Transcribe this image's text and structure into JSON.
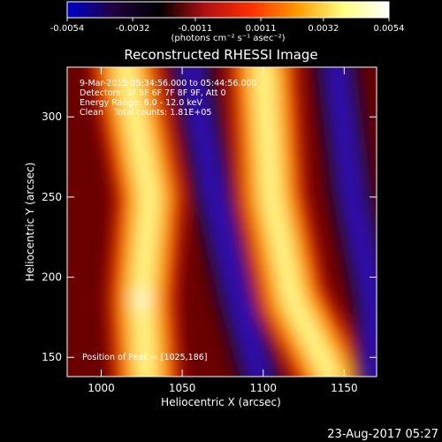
{
  "chart_data": {
    "type": "heatmap",
    "title": "Reconstructed RHESSI Image",
    "xlabel": "Heliocentric X (arcsec)",
    "ylabel": "Heliocentric Y (arcsec)",
    "xlim": [
      979,
      1170
    ],
    "ylim": [
      138,
      331
    ],
    "x_ticks": [
      1000,
      1050,
      1100,
      1150
    ],
    "y_ticks": [
      150,
      200,
      250,
      300
    ],
    "colorbar": {
      "min": -0.0054,
      "max": 0.0054,
      "ticks": [
        "-0.0054",
        "-0.0032",
        "-0.0011",
        "0.0011",
        "0.0032",
        "0.0054"
      ],
      "label": "(photons cm⁻² s⁻¹ asec⁻²)",
      "colormap": [
        "#0000d0",
        "#200040",
        "#000000",
        "#b01010",
        "#ff3000",
        "#ff9a00",
        "#ffff80",
        "#ffffff"
      ]
    },
    "annotations": [
      "9-Mar-2015 05:34:56.000 to 05:44:56.000",
      "Detectors: 3F 5F 6F 7F 8F 9F, Att 0",
      "Energy Range: 6.0 - 12.0 keV",
      "Clean    Total counts: 1.81E+05",
      "Position of Peak = [1025,186]"
    ],
    "peak": {
      "x": 1025,
      "y": 186
    },
    "bands": [
      {
        "kind": "bright",
        "points": [
          [
            1015,
            331
          ],
          [
            1030,
            250
          ],
          [
            1025,
            186
          ],
          [
            1028,
            138
          ]
        ]
      },
      {
        "kind": "dark",
        "points": [
          [
            1055,
            331
          ],
          [
            1070,
            250
          ],
          [
            1085,
            186
          ],
          [
            1098,
            138
          ]
        ]
      },
      {
        "kind": "bright",
        "points": [
          [
            1100,
            331
          ],
          [
            1105,
            250
          ],
          [
            1118,
            186
          ],
          [
            1142,
            138
          ]
        ]
      },
      {
        "kind": "dark",
        "points": [
          [
            1145,
            331
          ],
          [
            1155,
            250
          ],
          [
            1168,
            186
          ],
          [
            1170,
            138
          ]
        ]
      }
    ]
  },
  "footer": {
    "date": "23-Aug-2017 05:27"
  }
}
